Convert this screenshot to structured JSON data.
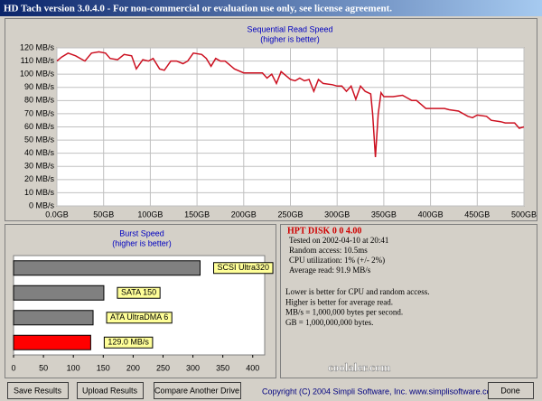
{
  "window": {
    "title": "HD Tach version 3.0.4.0  - For non-commercial or evaluation use only, see license agreement."
  },
  "chart_data": [
    {
      "type": "line",
      "title": "Sequential Read Speed",
      "subtitle": "(higher is better)",
      "color": "#cc1020",
      "grid": true,
      "x": [
        0,
        5,
        12,
        20,
        30,
        37,
        45,
        52,
        57,
        65,
        72,
        80,
        85,
        92,
        98,
        103,
        110,
        115,
        122,
        128,
        135,
        140,
        146,
        155,
        160,
        165,
        170,
        175,
        180,
        190,
        200,
        210,
        220,
        225,
        230,
        235,
        240,
        245,
        250,
        255,
        260,
        265,
        270,
        275,
        280,
        285,
        295,
        300,
        305,
        310,
        315,
        320,
        325,
        330,
        336,
        338,
        341,
        344,
        347,
        350,
        360,
        370,
        380,
        385,
        390,
        395,
        405,
        415,
        420,
        430,
        440,
        445,
        450,
        460,
        465,
        475,
        480,
        490,
        495,
        500
      ],
      "values": [
        110,
        113,
        116,
        114,
        110,
        116,
        117,
        116,
        112,
        111,
        115,
        114,
        104,
        111,
        110,
        112,
        104,
        103,
        110,
        110,
        108,
        110,
        116,
        115,
        112,
        106,
        112,
        110,
        110,
        104,
        101,
        101,
        101,
        97,
        100,
        93,
        102,
        99,
        96,
        95,
        97,
        95,
        96,
        87,
        96,
        93,
        92,
        91,
        91,
        87,
        91,
        81,
        91,
        87,
        85,
        70,
        37,
        70,
        86,
        83,
        83,
        84,
        80,
        80,
        77,
        74,
        74,
        74,
        73,
        72,
        68,
        67,
        69,
        68,
        65,
        64,
        63,
        63,
        59,
        60
      ],
      "xlim": [
        0,
        500
      ],
      "ylim": [
        0,
        120
      ],
      "xticks": [
        {
          "value": 0,
          "label": "0.0GB"
        },
        {
          "value": 50,
          "label": "50GB"
        },
        {
          "value": 100,
          "label": "100GB"
        },
        {
          "value": 150,
          "label": "150GB"
        },
        {
          "value": 200,
          "label": "200GB"
        },
        {
          "value": 250,
          "label": "250GB"
        },
        {
          "value": 300,
          "label": "300GB"
        },
        {
          "value": 350,
          "label": "350GB"
        },
        {
          "value": 400,
          "label": "400GB"
        },
        {
          "value": 450,
          "label": "450GB"
        },
        {
          "value": 500,
          "label": "500GB"
        }
      ],
      "yticks": [
        {
          "value": 0,
          "label": "0 MB/s"
        },
        {
          "value": 10,
          "label": "10 MB/s"
        },
        {
          "value": 20,
          "label": "20 MB/s"
        },
        {
          "value": 30,
          "label": "30 MB/s"
        },
        {
          "value": 40,
          "label": "40 MB/s"
        },
        {
          "value": 50,
          "label": "50 MB/s"
        },
        {
          "value": 60,
          "label": "60 MB/s"
        },
        {
          "value": 70,
          "label": "70 MB/s"
        },
        {
          "value": 80,
          "label": "80 MB/s"
        },
        {
          "value": 90,
          "label": "90 MB/s"
        },
        {
          "value": 100,
          "label": "100 MB/s"
        },
        {
          "value": 110,
          "label": "110 MB/s"
        },
        {
          "value": 120,
          "label": "120 MB/s"
        }
      ]
    },
    {
      "type": "hbar",
      "title": "Burst Speed",
      "subtitle": "(higher is better)",
      "categories": [
        "SCSI Ultra320",
        "SATA 150",
        "ATA UltraDMA 6",
        null
      ],
      "values": [
        312,
        151,
        133,
        129.0
      ],
      "value_labels": [
        null,
        null,
        null,
        "129.0 MB/s"
      ],
      "colors": [
        "#808080",
        "#808080",
        "#808080",
        "#ff0000"
      ],
      "xlim": [
        0,
        420
      ],
      "xticks": [
        0,
        50,
        100,
        150,
        200,
        250,
        300,
        350,
        400
      ]
    }
  ],
  "info": {
    "drive": "HPT DISK 0 0 4.00",
    "lines": [
      "Tested on 2002-04-10 at 20:41",
      "Random access: 10.5ms",
      "CPU utilization: 1% (+/- 2%)",
      "Average read: 91.9 MB/s"
    ],
    "notes": [
      "Lower is better for CPU and random access.",
      "Higher is better for average read.",
      "MB/s = 1,000,000 bytes per second.",
      "GB = 1,000,000,000 bytes."
    ]
  },
  "watermark": "coolaler.com",
  "buttons": [
    "Save Results",
    "Upload Results",
    "Compare Another Drive"
  ],
  "copyright": "Copyright (C) 2004 Simpli Software, Inc. www.simplisoftware.com",
  "done": "Done"
}
